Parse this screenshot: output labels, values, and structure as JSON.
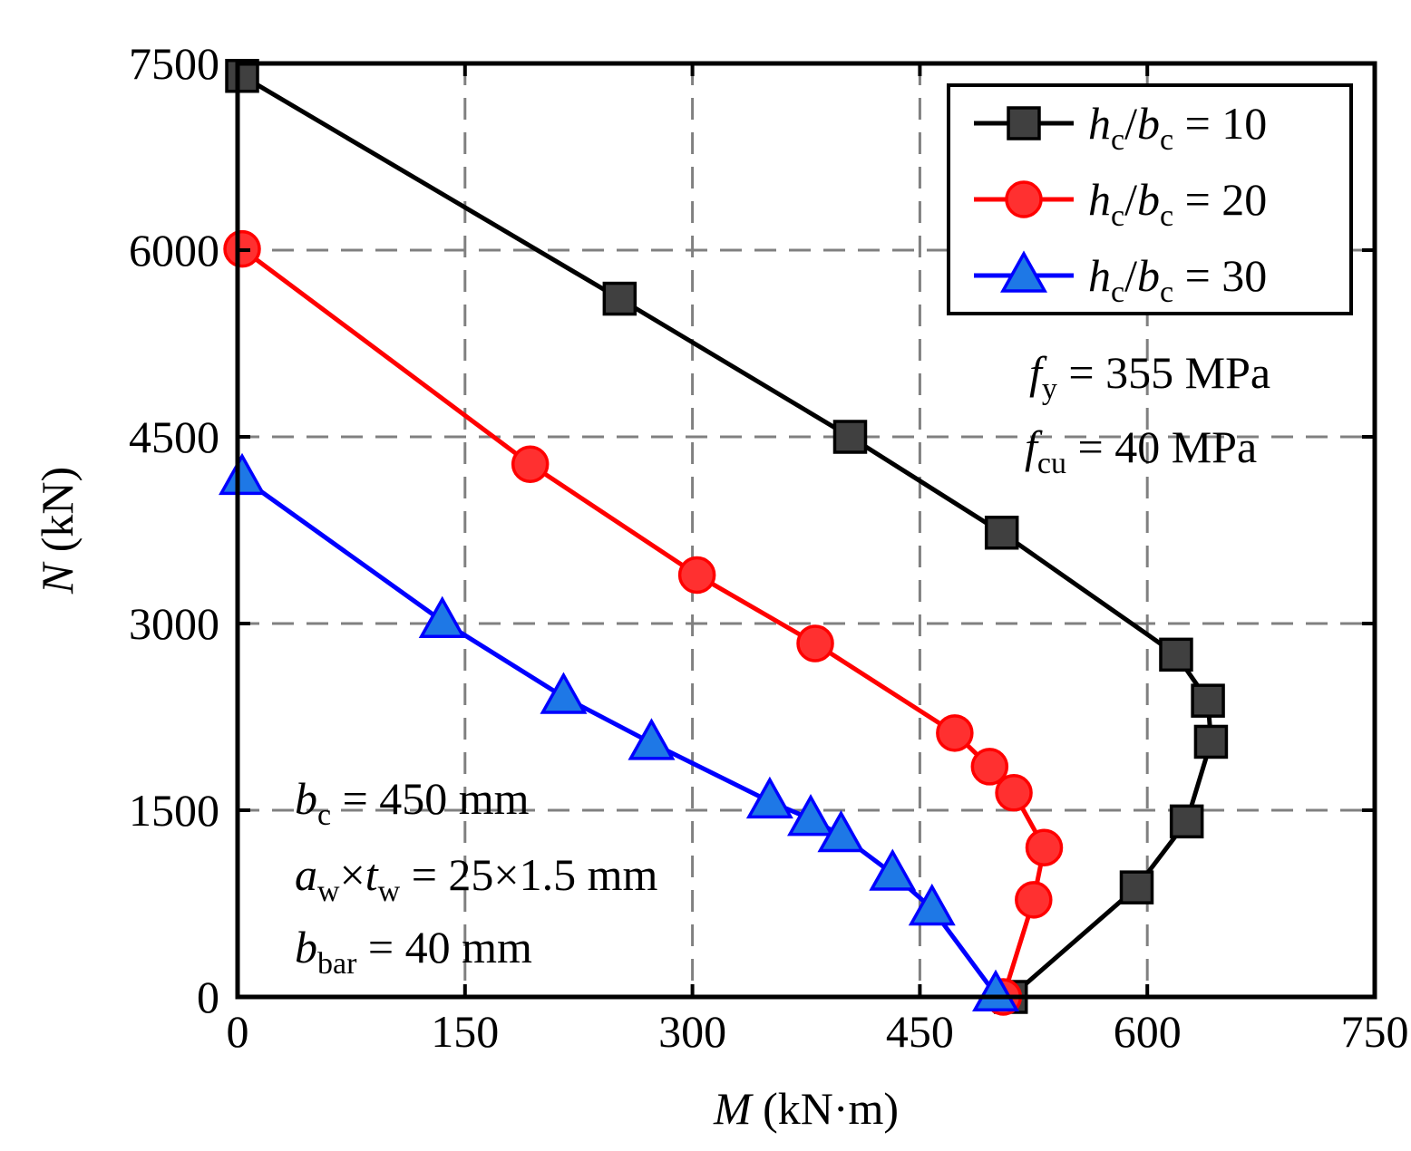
{
  "chart_data": {
    "type": "line",
    "title": "",
    "xlabel": {
      "var": "M",
      "unit": " (kN·m)"
    },
    "ylabel": {
      "var": "N",
      "unit": " (kN)"
    },
    "xlim": [
      0,
      750
    ],
    "ylim": [
      0,
      7500
    ],
    "xticks": [
      0,
      150,
      300,
      450,
      600,
      750
    ],
    "yticks": [
      0,
      1500,
      3000,
      4500,
      6000,
      7500
    ],
    "grid": "dashed",
    "legend_position": "top-right",
    "series": [
      {
        "name": "hc/bc = 10",
        "ratio": "10",
        "color": "#000000",
        "fill": "#404040",
        "marker": "square",
        "points": [
          [
            3,
            7400
          ],
          [
            252,
            5610
          ],
          [
            404,
            4500
          ],
          [
            504,
            3730
          ],
          [
            619,
            2750
          ],
          [
            640,
            2380
          ],
          [
            642,
            2050
          ],
          [
            626,
            1410
          ],
          [
            593,
            880
          ],
          [
            510,
            0
          ]
        ]
      },
      {
        "name": "hc/bc = 20",
        "ratio": "20",
        "color": "#ff0000",
        "fill": "#ff3030",
        "marker": "circle",
        "points": [
          [
            3,
            6010
          ],
          [
            193,
            4280
          ],
          [
            303,
            3390
          ],
          [
            381,
            2840
          ],
          [
            473,
            2120
          ],
          [
            496,
            1850
          ],
          [
            512,
            1640
          ],
          [
            532,
            1200
          ],
          [
            525,
            780
          ],
          [
            505,
            0
          ]
        ]
      },
      {
        "name": "hc/bc = 30",
        "ratio": "30",
        "color": "#0000ff",
        "fill": "#1e78e6",
        "marker": "triangle",
        "points": [
          [
            3,
            4170
          ],
          [
            135,
            3020
          ],
          [
            215,
            2410
          ],
          [
            273,
            2040
          ],
          [
            351,
            1570
          ],
          [
            378,
            1430
          ],
          [
            398,
            1300
          ],
          [
            432,
            990
          ],
          [
            458,
            710
          ],
          [
            500,
            20
          ]
        ]
      }
    ],
    "annotations_right": {
      "fy": {
        "var": "f",
        "sub": "y",
        "text": " = 355 MPa"
      },
      "fcu": {
        "var": "f",
        "sub": "cu",
        "text": " = 40 MPa"
      }
    },
    "annotations_left": {
      "bc": {
        "var": "b",
        "sub": "c",
        "text": " = 450 mm"
      },
      "aw_var": "a",
      "aw_sub": "w",
      "times": "×",
      "tw_var": "t",
      "tw_sub": "w",
      "aw_text": " = 25×1.5 mm",
      "bbar": {
        "var": "b",
        "sub": "bar",
        "text": " = 40 mm"
      }
    },
    "legend_var1": "h",
    "legend_sub1": "c",
    "legend_slash": "/",
    "legend_var2": "b",
    "legend_sub2": "c",
    "legend_eq": " = "
  }
}
